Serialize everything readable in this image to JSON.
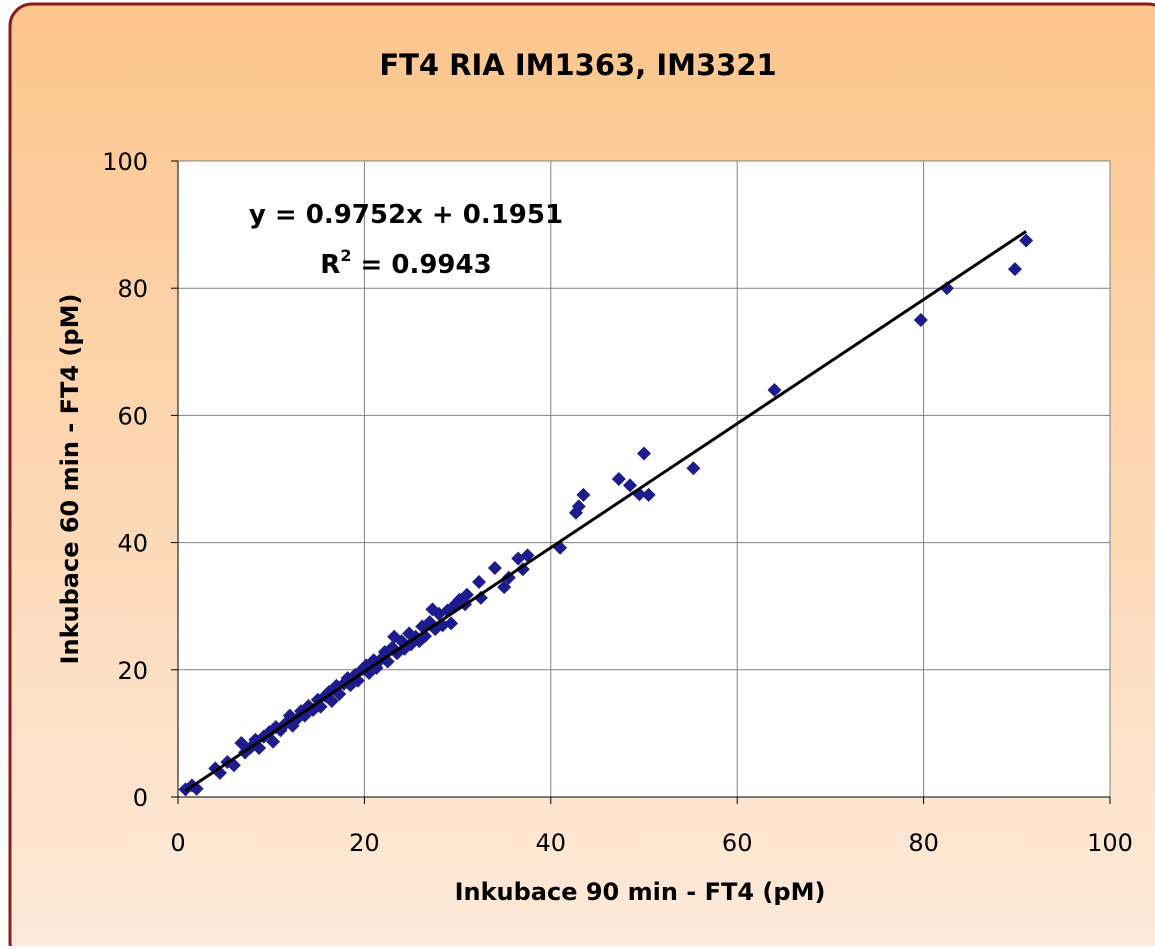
{
  "chart_data": {
    "type": "scatter",
    "title": "FT4 RIA IM1363, IM3321",
    "xlabel": "Inkubace 90 min - FT4 (pM)",
    "ylabel": "Inkubace 60 min - FT4 (pM)",
    "equation": "y = 0.9752x + 0.1951",
    "r_squared_text": [
      "R",
      "2",
      " = 0.9943"
    ],
    "xlim": [
      0,
      100
    ],
    "ylim": [
      0,
      100
    ],
    "xticks": [
      0,
      20,
      40,
      60,
      80,
      100
    ],
    "yticks": [
      0,
      20,
      40,
      60,
      80,
      100
    ],
    "grid": true,
    "series": [
      {
        "color": "#1c1c8c",
        "x": [
          0.8,
          1.5,
          2,
          4,
          4.5,
          5.3,
          6,
          6.8,
          7.2,
          7.8,
          8.3,
          8.7,
          9.2,
          9.8,
          10.2,
          10.5,
          11,
          11.5,
          12,
          12.3,
          12.8,
          13.2,
          13.6,
          14,
          14.5,
          15,
          15.3,
          15.8,
          16.2,
          16.5,
          17,
          17.3,
          17.8,
          18.2,
          18.5,
          19,
          19.3,
          19.8,
          20.2,
          20.5,
          21,
          21.3,
          21.8,
          22.2,
          22.5,
          23,
          23.2,
          23.5,
          24,
          24.3,
          24.8,
          25,
          25.5,
          25.9,
          26.2,
          26.5,
          27,
          27.3,
          27.6,
          28,
          28.4,
          28.9,
          29.3,
          29.7,
          30.2,
          30.8,
          31,
          32.3,
          32.5,
          34,
          35,
          35.5,
          36.5,
          37,
          37.5,
          41,
          42.7,
          43,
          43.5,
          47.3,
          48.5,
          49.5,
          50,
          50.5,
          55.3,
          64,
          79.7,
          82.5,
          89.8,
          91
        ],
        "values": [
          1.2,
          1.8,
          1.3,
          4.5,
          3.8,
          5.5,
          5,
          8.5,
          7,
          7.8,
          9,
          7.7,
          9.5,
          10.2,
          8.7,
          11,
          10.5,
          11.5,
          12.8,
          11.2,
          12.3,
          13.5,
          12.8,
          14.3,
          13.7,
          15.3,
          14.2,
          15.9,
          16.5,
          15.1,
          17.5,
          16.2,
          17.8,
          18.7,
          17.6,
          19.2,
          18.3,
          20.1,
          20.7,
          19.5,
          21.5,
          20.3,
          21.7,
          22.8,
          21.3,
          23.5,
          25.2,
          22.6,
          24.5,
          23.3,
          25.7,
          24,
          25.2,
          24.5,
          26.8,
          25.3,
          27.5,
          29.5,
          26.4,
          28.8,
          27,
          29.3,
          27.3,
          30.2,
          31,
          30.3,
          31.8,
          33.8,
          31.3,
          36,
          33,
          34.5,
          37.5,
          35.8,
          38,
          39.2,
          44.7,
          45.7,
          47.5,
          50,
          49,
          47.6,
          54,
          47.5,
          51.7,
          64,
          75,
          80,
          83,
          87.5
        ]
      }
    ],
    "trendline": {
      "color": "#000000",
      "x": [
        0.8,
        91
      ],
      "values": [
        0.98,
        88.94
      ]
    }
  }
}
